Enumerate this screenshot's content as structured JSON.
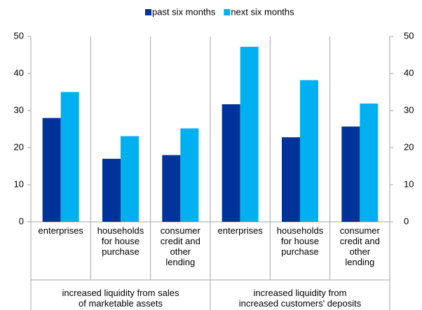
{
  "chart_data": {
    "type": "bar",
    "categories": [
      "enterprises",
      "households\nfor house\npurchase",
      "consumer\ncredit and\nother\nlending",
      "enterprises",
      "households\nfor house\npurchase",
      "consumer\ncredit and\nother\nlending"
    ],
    "groups": [
      {
        "label": "increased liquidity from sales\nof marketable assets",
        "span": [
          0,
          2
        ]
      },
      {
        "label": "increased liquidity from\nincreased customers' deposits",
        "span": [
          3,
          5
        ]
      }
    ],
    "series": [
      {
        "name": "past six months",
        "color": "#003399",
        "values": [
          28,
          17,
          18,
          31.7,
          22.8,
          25.7
        ]
      },
      {
        "name": "next six months",
        "color": "#00b0f0",
        "values": [
          35,
          23.1,
          25.2,
          47.2,
          38.2,
          31.9
        ]
      }
    ],
    "ylim": [
      0,
      50
    ],
    "yticks": [
      0,
      10,
      20,
      30,
      40,
      50
    ],
    "y2lim": [
      0,
      50
    ],
    "y2ticks": [
      0,
      10,
      20,
      30,
      40,
      50
    ],
    "legend": "top"
  }
}
